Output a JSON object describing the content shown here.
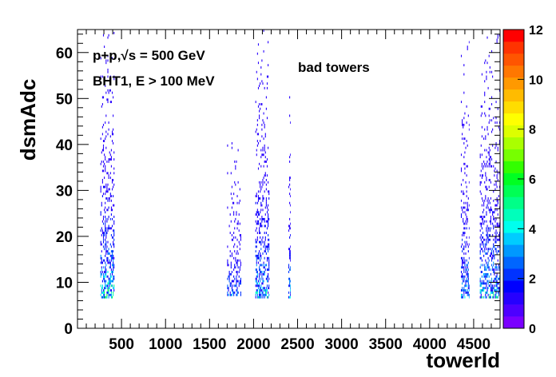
{
  "chart_data": {
    "type": "heatmap",
    "title": "",
    "xlabel": "towerId",
    "ylabel": "dsmAdc",
    "xlim": [
      0,
      4800
    ],
    "ylim": [
      0,
      65
    ],
    "x_ticks": [
      500,
      1000,
      1500,
      2000,
      2500,
      3000,
      3500,
      4000,
      4500
    ],
    "x_tick_labels": [
      "500",
      "1000",
      "1500",
      "2000",
      "2500",
      "3000",
      "3500",
      "4000",
      "4500"
    ],
    "y_ticks": [
      0,
      10,
      20,
      30,
      40,
      50,
      60
    ],
    "y_tick_labels": [
      "0",
      "10",
      "20",
      "30",
      "40",
      "50",
      "60"
    ],
    "z_range": [
      0,
      12
    ],
    "z_ticks": [
      0,
      2,
      4,
      6,
      8,
      10,
      12
    ],
    "z_tick_labels": [
      "0",
      "2",
      "4",
      "6",
      "8",
      "10",
      "12"
    ],
    "annotations": [
      {
        "text": "p+p,√s = 500 GeV"
      },
      {
        "text": "BHT1, E > 100 MeV"
      },
      {
        "text": "bad towers"
      }
    ],
    "bands": [
      {
        "x_range": [
          260,
          420
        ],
        "y_top": 65,
        "y_min": 6.5,
        "peak": 5.5,
        "density": 0.55
      },
      {
        "x_range": [
          1700,
          1860
        ],
        "y_top": 42,
        "y_min": 7,
        "peak": 2.5,
        "density": 0.35
      },
      {
        "x_range": [
          2020,
          2180
        ],
        "y_top": 65,
        "y_min": 6.5,
        "peak": 4.5,
        "density": 0.5
      },
      {
        "x_range": [
          2395,
          2420
        ],
        "y_top": 52,
        "y_min": 6.5,
        "peak": 3.5,
        "density": 0.6
      },
      {
        "x_range": [
          4355,
          4450
        ],
        "y_top": 65,
        "y_min": 6.5,
        "peak": 3.5,
        "density": 0.45
      },
      {
        "x_range": [
          4570,
          4800
        ],
        "y_top": 65,
        "y_min": 6.5,
        "peak": 4.5,
        "density": 0.5
      }
    ],
    "grid": false,
    "palette": [
      "#7a00ff",
      "#4d00ff",
      "#2600ff",
      "#0000ff",
      "#0033ff",
      "#0066ff",
      "#0099ff",
      "#00ccff",
      "#00ffee",
      "#00ffbb",
      "#00ff88",
      "#00ff55",
      "#00ff22",
      "#33ff00",
      "#77ff00",
      "#aaff00",
      "#ddff00",
      "#ffff00",
      "#ffdd00",
      "#ffbb00",
      "#ff9900",
      "#ff7700",
      "#ff5500",
      "#ff3300",
      "#ff0000"
    ]
  }
}
